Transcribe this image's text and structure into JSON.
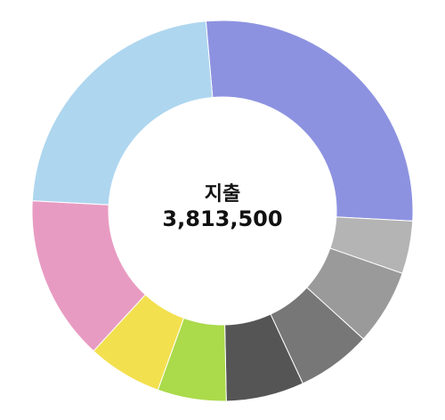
{
  "chart_data": {
    "type": "pie",
    "subtype": "donut",
    "center_title": "지출",
    "center_value": "3,813,500",
    "slices": [
      {
        "value": 28.0,
        "color": "#8d92e0"
      },
      {
        "value": 4.6,
        "color": "#b4b4b4"
      },
      {
        "value": 6.6,
        "color": "#9a9a9a"
      },
      {
        "value": 6.5,
        "color": "#777777"
      },
      {
        "value": 6.8,
        "color": "#555555"
      },
      {
        "value": 6.0,
        "color": "#abda4b"
      },
      {
        "value": 6.5,
        "color": "#f3e04f"
      },
      {
        "value": 14.4,
        "color": "#e89bc2"
      },
      {
        "value": 23.4,
        "color": "#aed6ef"
      }
    ]
  }
}
